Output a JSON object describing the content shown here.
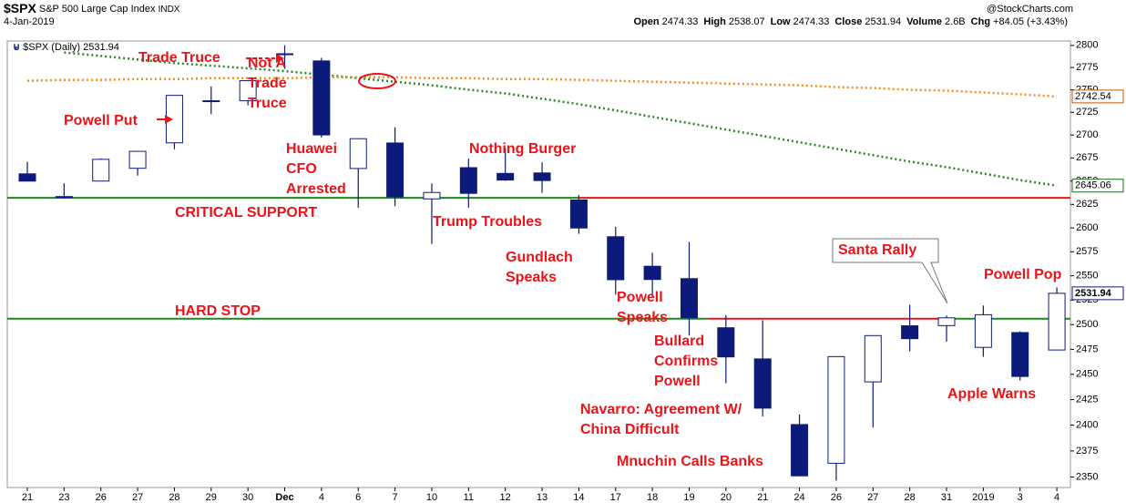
{
  "header": {
    "symbol": "$SPX",
    "name": "S&P 500 Large Cap Index",
    "exchange": "INDX",
    "date": "4-Jan-2019",
    "source": "@StockCharts.com",
    "quote": [
      [
        "Open",
        "2474.33"
      ],
      [
        "High",
        "2538.07"
      ],
      [
        "Low",
        "2474.33"
      ],
      [
        "Close",
        "2531.94"
      ],
      [
        "Volume",
        "2.6B"
      ],
      [
        "Chg",
        "+84.05 (+3.43%)"
      ]
    ]
  },
  "chart_data": {
    "type": "candlestick",
    "legend_label": "$SPX (Daily) 2531.94",
    "log_scale": true,
    "grid": false,
    "up_color": "#ffffff",
    "down_color": "#0c1a7a",
    "edge_color": "#0c1a7a",
    "categories": [
      "21",
      "23",
      "26",
      "27",
      "28",
      "29",
      "30",
      "Dec",
      "4",
      "6",
      "7",
      "10",
      "11",
      "12",
      "13",
      "14",
      "17",
      "18",
      "19",
      "20",
      "21",
      "24",
      "26",
      "27",
      "28",
      "31",
      "2019",
      "3",
      "4"
    ],
    "open": [
      2657.74,
      2633.36,
      2649.97,
      2663.75,
      2691.45,
      2736.97,
      2737.76,
      2790.5,
      2782.43,
      2663.51,
      2691.26,
      2630.86,
      2664.44,
      2658.23,
      2658.7,
      2629.68,
      2590.75,
      2559.9,
      2547.05,
      2496.77,
      2465.38,
      2400.56,
      2363.12,
      2442.5,
      2498.77,
      2498.94,
      2476.96,
      2491.92,
      2474.33
    ],
    "high": [
      2670.73,
      2647.55,
      2674.35,
      2682.53,
      2744.0,
      2753.75,
      2760.88,
      2800.18,
      2785.93,
      2696.15,
      2708.54,
      2647.51,
      2674.35,
      2685.44,
      2670.19,
      2635.07,
      2601.13,
      2573.99,
      2585.29,
      2509.63,
      2504.41,
      2410.34,
      2467.76,
      2489.1,
      2520.27,
      2509.24,
      2519.49,
      2493.14,
      2538.07
    ],
    "low": [
      2649.82,
      2631.09,
      2649.97,
      2655.89,
      2684.38,
      2722.94,
      2732.76,
      2773.38,
      2697.18,
      2621.53,
      2623.14,
      2583.23,
      2621.3,
      2650.26,
      2637.27,
      2593.84,
      2530.54,
      2528.71,
      2488.96,
      2441.18,
      2408.55,
      2351.1,
      2346.58,
      2397.94,
      2472.89,
      2482.82,
      2467.47,
      2443.96,
      2474.33
    ],
    "close": [
      2649.93,
      2632.56,
      2673.45,
      2682.17,
      2743.79,
      2737.8,
      2760.17,
      2790.37,
      2700.06,
      2695.95,
      2633.08,
      2637.72,
      2636.78,
      2651.07,
      2650.54,
      2599.95,
      2545.94,
      2546.16,
      2506.96,
      2467.42,
      2416.62,
      2351.1,
      2467.7,
      2488.83,
      2485.74,
      2506.85,
      2510.03,
      2447.89,
      2531.94
    ],
    "series": [
      {
        "color": "#2a8a22",
        "values": [
          null,
          2792,
          2788,
          2784,
          2780,
          2777,
          2774,
          2771,
          2767,
          2763,
          2759,
          2755,
          2750,
          2746,
          2740,
          2734,
          2727,
          2720,
          2713,
          2706,
          2699,
          2692,
          2685,
          2678,
          2671,
          2665,
          2658,
          2651,
          2645.06
        ]
      },
      {
        "color": "#f39020",
        "values": [
          2760,
          2761,
          2761,
          2762,
          2762,
          2763,
          2763,
          2763,
          2764,
          2764,
          2764,
          2763,
          2763,
          2762,
          2762,
          2761,
          2760,
          2759,
          2758,
          2757,
          2756,
          2755,
          2753,
          2752,
          2750,
          2749,
          2747,
          2745,
          2742.54
        ]
      }
    ],
    "levels": [
      {
        "value": 2632,
        "colors": [
          "#1a8a1a",
          "#e8141a"
        ],
        "breaks": [
          15
        ]
      },
      {
        "value": 2506,
        "colors": [
          "#1a8a1a",
          "#e8141a",
          "#1a8a1a"
        ],
        "breaks": [
          18.5,
          25
        ]
      }
    ],
    "ylim": [
      2340,
      2805
    ],
    "yticks": [
      2350,
      2375,
      2400,
      2425,
      2450,
      2475,
      2500,
      2525,
      2550,
      2575,
      2600,
      2625,
      2650,
      2675,
      2700,
      2725,
      2750,
      2775,
      2800
    ],
    "annotations": [
      [
        "Trade Truce"
      ],
      [
        "Not A",
        "Trade",
        "Truce"
      ],
      [
        "Powell Put"
      ],
      [
        "Huawei",
        "CFO",
        "Arrested"
      ],
      [
        "Nothing Burger"
      ],
      [
        "CRITICAL SUPPORT"
      ],
      [
        "Trump Troubles"
      ],
      [
        "Gundlach",
        "Speaks"
      ],
      [
        "Powell",
        "Speaks"
      ],
      [
        "HARD STOP"
      ],
      [
        "Bullard",
        "Confirms",
        "Powell"
      ],
      [
        "Navarro: Agreement W/",
        "China Difficult"
      ],
      [
        "Mnuchin Calls Banks"
      ],
      [
        "Santa Rally"
      ],
      [
        "Powell Pop"
      ],
      [
        "Apple Warns"
      ]
    ]
  }
}
